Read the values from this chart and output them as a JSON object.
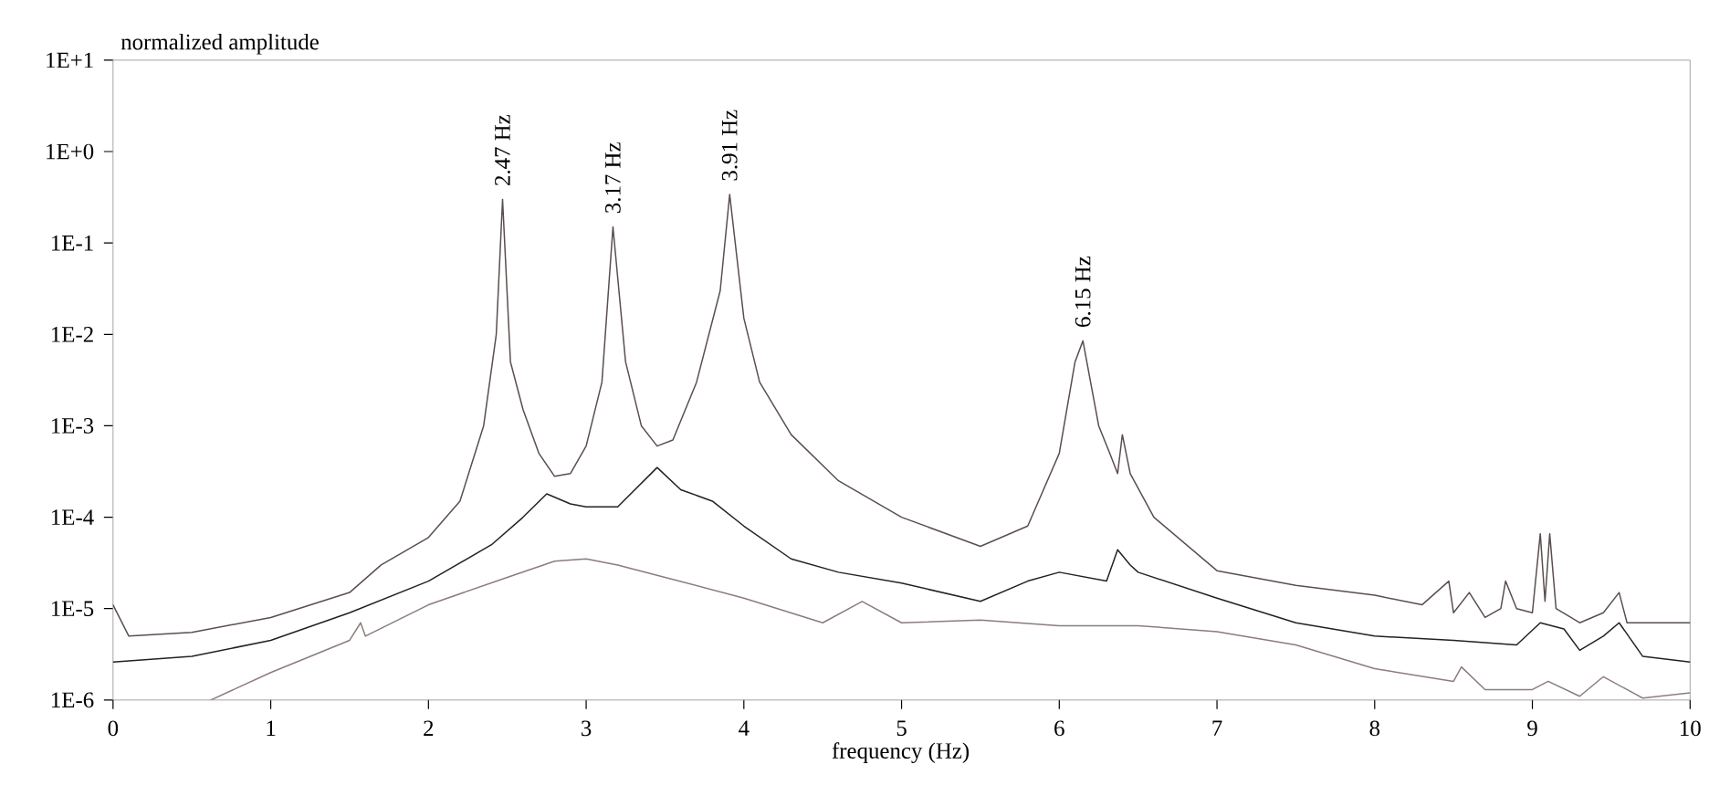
{
  "chart_data": {
    "type": "line",
    "xlabel": "frequency (Hz)",
    "ylabel": "normalized amplitude",
    "log": "y",
    "xlim": [
      0,
      10
    ],
    "ylim": [
      1e-06,
      10
    ],
    "xticks": [
      0,
      1,
      2,
      3,
      4,
      5,
      6,
      7,
      8,
      9,
      10
    ],
    "yticks": [
      {
        "value": 10,
        "label": "1E+1"
      },
      {
        "value": 1,
        "label": "1E+0"
      },
      {
        "value": 0.1,
        "label": "1E-1"
      },
      {
        "value": 0.01,
        "label": "1E-2"
      },
      {
        "value": 0.001,
        "label": "1E-3"
      },
      {
        "value": 0.0001,
        "label": "1E-4"
      },
      {
        "value": 1e-05,
        "label": "1E-5"
      },
      {
        "value": 1e-06,
        "label": "1E-6"
      }
    ],
    "grid": false,
    "marker": "none",
    "line_style": "solid",
    "series": [
      {
        "color": "#5a4e4e",
        "x": [
          0,
          0.1,
          0.5,
          1,
          1.5,
          1.7,
          2,
          2.2,
          2.35,
          2.43,
          2.47,
          2.52,
          2.6,
          2.7,
          2.8,
          2.9,
          3.0,
          3.1,
          3.17,
          3.25,
          3.35,
          3.45,
          3.55,
          3.7,
          3.85,
          3.91,
          4.0,
          4.1,
          4.3,
          4.6,
          5.0,
          5.5,
          5.8,
          6.0,
          6.1,
          6.15,
          6.25,
          6.32,
          6.37,
          6.4,
          6.45,
          6.6,
          7,
          7.5,
          8,
          8.3,
          8.47,
          8.5,
          8.6,
          8.7,
          8.8,
          8.83,
          8.9,
          9.0,
          9.05,
          9.08,
          9.11,
          9.15,
          9.3,
          9.45,
          9.55,
          9.6,
          10
        ],
        "values": [
          1.1e-05,
          5e-06,
          5.5e-06,
          8e-06,
          1.5e-05,
          3e-05,
          6e-05,
          0.00015,
          0.001,
          0.01,
          0.3,
          0.005,
          0.0015,
          0.0005,
          0.00028,
          0.0003,
          0.0006,
          0.003,
          0.15,
          0.005,
          0.001,
          0.0006,
          0.0007,
          0.003,
          0.03,
          0.34,
          0.015,
          0.003,
          0.0008,
          0.00025,
          0.0001,
          4.8e-05,
          8e-05,
          0.0005,
          0.005,
          0.0085,
          0.001,
          0.0005,
          0.0003,
          0.0008,
          0.0003,
          0.0001,
          2.6e-05,
          1.8e-05,
          1.4e-05,
          1.1e-05,
          2e-05,
          9e-06,
          1.5e-05,
          8e-06,
          1e-05,
          2e-05,
          1e-05,
          9e-06,
          6.6e-05,
          1.2e-05,
          6.6e-05,
          1e-05,
          7e-06,
          9e-06,
          1.5e-05,
          7e-06,
          7e-06
        ]
      },
      {
        "color": "#222222",
        "x": [
          0,
          0.5,
          1,
          1.5,
          2,
          2.4,
          2.6,
          2.75,
          2.9,
          3.0,
          3.2,
          3.45,
          3.6,
          3.8,
          4.0,
          4.3,
          4.6,
          5.0,
          5.5,
          5.8,
          6.0,
          6.3,
          6.37,
          6.45,
          6.5,
          7,
          7.5,
          8,
          8.5,
          8.9,
          9.05,
          9.2,
          9.3,
          9.45,
          9.55,
          9.7,
          10
        ],
        "values": [
          2.6e-06,
          3e-06,
          4.5e-06,
          9e-06,
          2e-05,
          5e-05,
          0.0001,
          0.00018,
          0.00014,
          0.00013,
          0.00013,
          0.00035,
          0.0002,
          0.00015,
          8e-05,
          3.5e-05,
          2.5e-05,
          1.9e-05,
          1.2e-05,
          2e-05,
          2.5e-05,
          2e-05,
          4.4e-05,
          3e-05,
          2.5e-05,
          1.3e-05,
          7e-06,
          5e-06,
          4.5e-06,
          4e-06,
          7e-06,
          6e-06,
          3.5e-06,
          5e-06,
          7e-06,
          3e-06,
          2.6e-06
        ]
      },
      {
        "color": "#8c7c7c",
        "x": [
          0.62,
          1,
          1.5,
          1.57,
          1.6,
          2,
          2.5,
          2.8,
          3.0,
          3.2,
          3.5,
          4.0,
          4.5,
          4.75,
          5.0,
          5.5,
          6,
          6.5,
          7,
          7.5,
          8,
          8.5,
          8.55,
          8.7,
          9.0,
          9.1,
          9.3,
          9.45,
          9.6,
          9.7,
          10
        ],
        "values": [
          1e-06,
          2e-06,
          4.5e-06,
          7e-06,
          5e-06,
          1.1e-05,
          2.2e-05,
          3.3e-05,
          3.5e-05,
          3e-05,
          2.2e-05,
          1.3e-05,
          7e-06,
          1.2e-05,
          7e-06,
          7.5e-06,
          6.5e-06,
          6.5e-06,
          5.6e-06,
          4e-06,
          2.2e-06,
          1.6e-06,
          2.3e-06,
          1.3e-06,
          1.3e-06,
          1.6e-06,
          1.1e-06,
          1.8e-06,
          1.3e-06,
          1.05e-06,
          1.2e-06
        ]
      }
    ],
    "annotations": [
      {
        "text": "2.47 Hz",
        "x": 2.47,
        "y": 0.3
      },
      {
        "text": "3.17 Hz",
        "x": 3.17,
        "y": 0.15
      },
      {
        "text": "3.91 Hz",
        "x": 3.91,
        "y": 0.34
      },
      {
        "text": "6.15 Hz",
        "x": 6.15,
        "y": 0.0085
      }
    ]
  }
}
